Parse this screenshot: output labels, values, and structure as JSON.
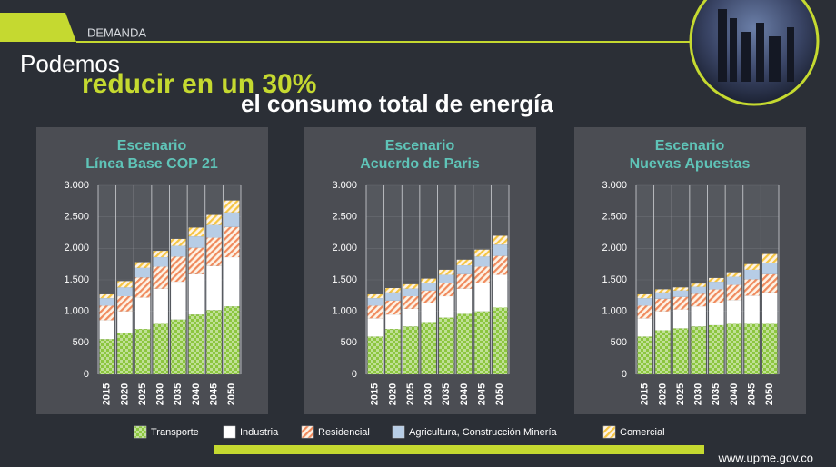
{
  "header": {
    "section": "DEMANDA",
    "title_1": "Podemos",
    "title_2": "reducir en un 30%",
    "title_3": "el consumo total de energía"
  },
  "footer": {
    "url": "www.upme.gov.co"
  },
  "legend": {
    "items": [
      {
        "name": "Transporte",
        "color": "#8cc63f",
        "pattern": "check"
      },
      {
        "name": "Industria",
        "color": "#ffffff",
        "pattern": "solid"
      },
      {
        "name": "Residencial",
        "color": "#f08a5d",
        "pattern": "hatch"
      },
      {
        "name": "Agricultura, Construcción Minería",
        "color": "#b7cde6",
        "pattern": "solid"
      },
      {
        "name": "Comercial",
        "color": "#f5c542",
        "pattern": "hatch"
      }
    ]
  },
  "chart_data": [
    {
      "type": "stacked-bar",
      "title_1": "Escenario",
      "title_2": "Línea Base COP 21",
      "categories": [
        "2015",
        "2020",
        "2025",
        "2030",
        "2035",
        "2040",
        "2045",
        "2050"
      ],
      "ylim": [
        0,
        3000
      ],
      "yticks": [
        0,
        500,
        {
          "value": 1000,
          "label": "1.000"
        },
        {
          "value": 1500,
          "label": "1.500"
        },
        {
          "value": 2000,
          "label": "2.000"
        },
        {
          "value": 2500,
          "label": "2.500"
        },
        {
          "value": 3000,
          "label": "3.000"
        }
      ],
      "series": [
        {
          "values": [
            560,
            650,
            720,
            800,
            870,
            950,
            1020,
            1080
          ]
        },
        {
          "values": [
            300,
            350,
            500,
            560,
            600,
            640,
            700,
            780
          ]
        },
        {
          "values": [
            230,
            240,
            320,
            350,
            400,
            420,
            450,
            480
          ]
        },
        {
          "values": [
            120,
            140,
            150,
            150,
            170,
            180,
            200,
            230
          ]
        },
        {
          "values": [
            60,
            100,
            90,
            100,
            110,
            140,
            160,
            190
          ]
        }
      ]
    },
    {
      "type": "stacked-bar",
      "title_1": "Escenario",
      "title_2": "Acuerdo de Paris",
      "categories": [
        "2015",
        "2020",
        "2025",
        "2030",
        "2035",
        "2040",
        "2045",
        "2050"
      ],
      "ylim": [
        0,
        3000
      ],
      "yticks": [
        0,
        500,
        {
          "value": 1000,
          "label": "1.000"
        },
        {
          "value": 1500,
          "label": "1.500"
        },
        {
          "value": 2000,
          "label": "2.000"
        },
        {
          "value": 2500,
          "label": "2.500"
        },
        {
          "value": 3000,
          "label": "3.000"
        }
      ],
      "series": [
        {
          "values": [
            600,
            720,
            760,
            830,
            900,
            960,
            1000,
            1060
          ]
        },
        {
          "values": [
            290,
            230,
            280,
            300,
            340,
            400,
            450,
            520
          ]
        },
        {
          "values": [
            200,
            220,
            200,
            200,
            210,
            230,
            260,
            300
          ]
        },
        {
          "values": [
            120,
            130,
            120,
            120,
            130,
            140,
            160,
            180
          ]
        },
        {
          "values": [
            60,
            70,
            70,
            70,
            80,
            90,
            110,
            140
          ]
        }
      ]
    },
    {
      "type": "stacked-bar",
      "title_1": "Escenario",
      "title_2": "Nuevas Apuestas",
      "categories": [
        "2015",
        "2020",
        "2025",
        "2030",
        "2035",
        "2040",
        "2045",
        "2050"
      ],
      "ylim": [
        0,
        3000
      ],
      "yticks": [
        0,
        500,
        {
          "value": 1000,
          "label": "1.000"
        },
        {
          "value": 1500,
          "label": "1.500"
        },
        {
          "value": 2000,
          "label": "2.000"
        },
        {
          "value": 2500,
          "label": "2.500"
        },
        {
          "value": 3000,
          "label": "3.000"
        }
      ],
      "series": [
        {
          "values": [
            600,
            700,
            730,
            760,
            780,
            800,
            800,
            800
          ]
        },
        {
          "values": [
            290,
            300,
            300,
            320,
            350,
            380,
            450,
            500
          ]
        },
        {
          "values": [
            200,
            200,
            200,
            200,
            220,
            240,
            260,
            290
          ]
        },
        {
          "values": [
            120,
            100,
            100,
            110,
            120,
            130,
            150,
            180
          ]
        },
        {
          "values": [
            60,
            50,
            50,
            50,
            60,
            70,
            90,
            140
          ]
        }
      ]
    }
  ]
}
